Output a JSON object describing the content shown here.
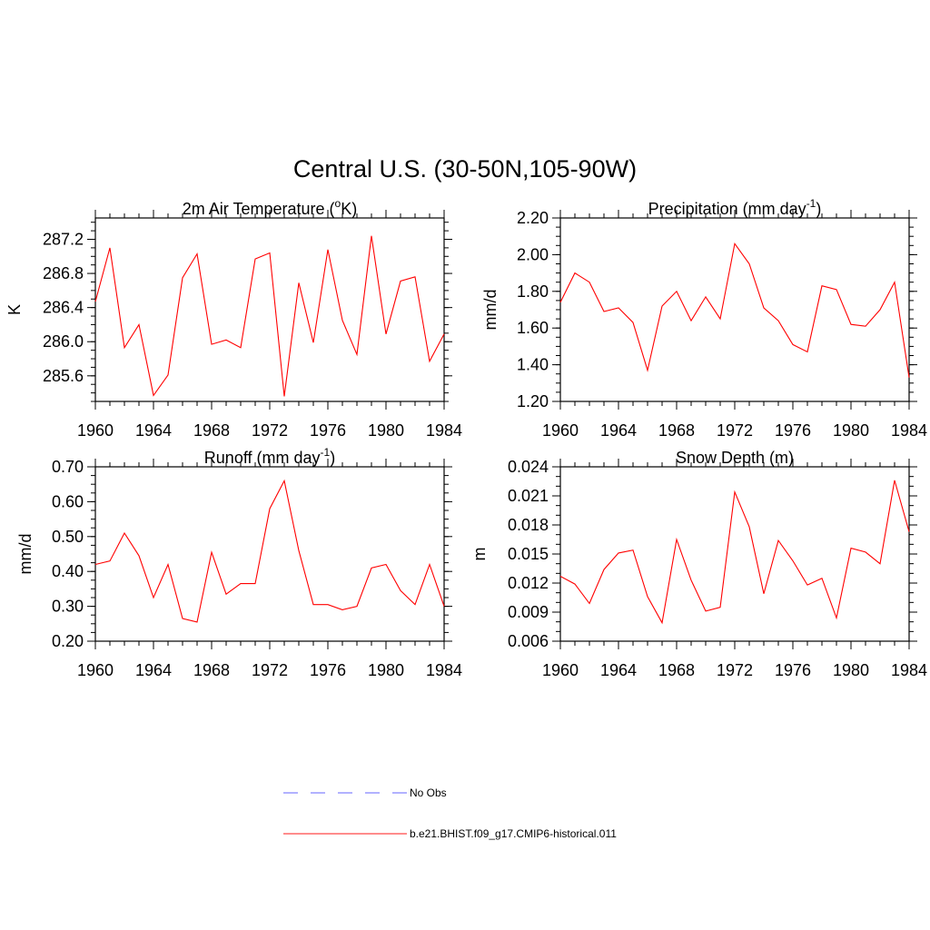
{
  "figure": {
    "title": "Central U.S. (30-50N,105-90W)",
    "legend": [
      {
        "label": "No Obs",
        "color": "#9999ff",
        "dash": true
      },
      {
        "label": "b.e21.BHIST.f09_g17.CMIP6-historical.011",
        "color": "#ff6666",
        "dash": false
      }
    ],
    "line_color": "#ff0000"
  },
  "chart_data": [
    {
      "type": "line",
      "title_main": "2m Air Temperature (",
      "title_sup": "o",
      "title_tail": "K)",
      "ylabel": "K",
      "xlim": [
        1960,
        1984
      ],
      "ylim": [
        285.3,
        287.45
      ],
      "xticks": [
        1960,
        1964,
        1968,
        1972,
        1976,
        1980,
        1984
      ],
      "yticks": [
        285.6,
        286.0,
        286.4,
        286.8,
        287.2
      ],
      "yticklabels": [
        "285.6",
        "286.0",
        "286.4",
        "286.8",
        "287.2"
      ],
      "yminor": 0.1,
      "x": [
        1960,
        1961,
        1962,
        1963,
        1964,
        1965,
        1966,
        1967,
        1968,
        1969,
        1970,
        1971,
        1972,
        1973,
        1974,
        1975,
        1976,
        1977,
        1978,
        1979,
        1980,
        1981,
        1982,
        1983,
        1984
      ],
      "values": [
        286.47,
        287.1,
        285.93,
        286.2,
        285.37,
        285.61,
        286.75,
        287.03,
        285.97,
        286.02,
        285.93,
        286.97,
        287.04,
        285.36,
        286.69,
        285.99,
        287.08,
        286.25,
        285.85,
        287.24,
        286.09,
        286.71,
        286.76,
        285.77,
        286.09
      ]
    },
    {
      "type": "line",
      "title_main": "Precipitation (mm day",
      "title_sup": "-1",
      "title_tail": ")",
      "ylabel": "mm/d",
      "xlim": [
        1960,
        1984
      ],
      "ylim": [
        1.2,
        2.2
      ],
      "xticks": [
        1960,
        1964,
        1968,
        1972,
        1976,
        1980,
        1984
      ],
      "yticks": [
        1.2,
        1.4,
        1.6,
        1.8,
        2.0,
        2.2
      ],
      "yticklabels": [
        "1.20",
        "1.40",
        "1.60",
        "1.80",
        "2.00",
        "2.20"
      ],
      "yminor": 0.05,
      "x": [
        1960,
        1961,
        1962,
        1963,
        1964,
        1965,
        1966,
        1967,
        1968,
        1969,
        1970,
        1971,
        1972,
        1973,
        1974,
        1975,
        1976,
        1977,
        1978,
        1979,
        1980,
        1981,
        1982,
        1983,
        1984
      ],
      "values": [
        1.74,
        1.9,
        1.85,
        1.69,
        1.71,
        1.63,
        1.37,
        1.72,
        1.8,
        1.64,
        1.77,
        1.65,
        2.06,
        1.95,
        1.71,
        1.64,
        1.51,
        1.47,
        1.83,
        1.81,
        1.62,
        1.61,
        1.7,
        1.85,
        1.33
      ]
    },
    {
      "type": "line",
      "title_main": "Runoff (mm day",
      "title_sup": "-1",
      "title_tail": ")",
      "ylabel": "mm/d",
      "xlim": [
        1960,
        1984
      ],
      "ylim": [
        0.2,
        0.7
      ],
      "xticks": [
        1960,
        1964,
        1968,
        1972,
        1976,
        1980,
        1984
      ],
      "yticks": [
        0.2,
        0.3,
        0.4,
        0.5,
        0.6,
        0.7
      ],
      "yticklabels": [
        "0.20",
        "0.30",
        "0.40",
        "0.50",
        "0.60",
        "0.70"
      ],
      "yminor": 0.025,
      "x": [
        1960,
        1961,
        1962,
        1963,
        1964,
        1965,
        1966,
        1967,
        1968,
        1969,
        1970,
        1971,
        1972,
        1973,
        1974,
        1975,
        1976,
        1977,
        1978,
        1979,
        1980,
        1981,
        1982,
        1983,
        1984
      ],
      "values": [
        0.42,
        0.43,
        0.51,
        0.445,
        0.325,
        0.42,
        0.265,
        0.255,
        0.455,
        0.335,
        0.365,
        0.365,
        0.58,
        0.66,
        0.46,
        0.305,
        0.305,
        0.29,
        0.3,
        0.41,
        0.42,
        0.345,
        0.305,
        0.42,
        0.3
      ]
    },
    {
      "type": "line",
      "title_main": "Snow Depth (m)",
      "title_sup": "",
      "title_tail": "",
      "ylabel": "m",
      "xlim": [
        1960,
        1984
      ],
      "ylim": [
        0.006,
        0.024
      ],
      "xticks": [
        1960,
        1964,
        1968,
        1972,
        1976,
        1980,
        1984
      ],
      "yticks": [
        0.006,
        0.009,
        0.012,
        0.015,
        0.018,
        0.021,
        0.024
      ],
      "yticklabels": [
        "0.006",
        "0.009",
        "0.012",
        "0.015",
        "0.018",
        "0.021",
        "0.024"
      ],
      "yminor": 0.001,
      "x": [
        1960,
        1961,
        1962,
        1963,
        1964,
        1965,
        1966,
        1967,
        1968,
        1969,
        1970,
        1971,
        1972,
        1973,
        1974,
        1975,
        1976,
        1977,
        1978,
        1979,
        1980,
        1981,
        1982,
        1983,
        1984
      ],
      "values": [
        0.0127,
        0.0119,
        0.0099,
        0.0134,
        0.0151,
        0.0154,
        0.0106,
        0.0079,
        0.0165,
        0.0123,
        0.0091,
        0.0095,
        0.0214,
        0.0178,
        0.0109,
        0.0164,
        0.0143,
        0.0118,
        0.0125,
        0.0084,
        0.0156,
        0.0152,
        0.014,
        0.0226,
        0.0173
      ]
    }
  ]
}
